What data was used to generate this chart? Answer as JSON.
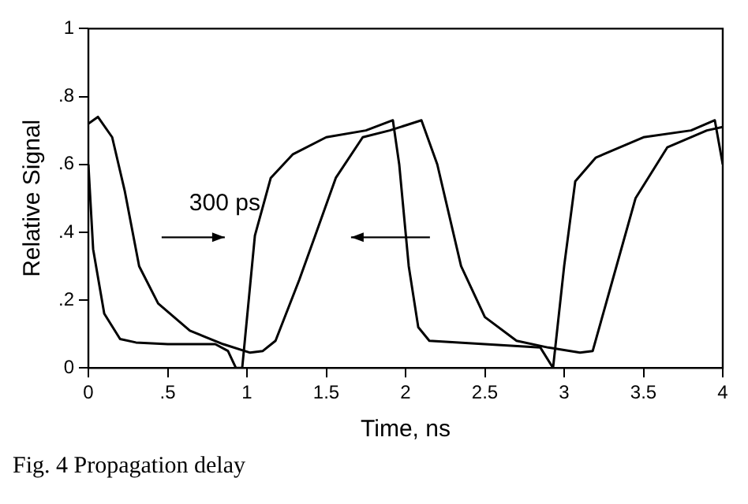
{
  "chart_data": {
    "type": "line",
    "xlabel": "Time, ns",
    "ylabel": "Relative Signal",
    "xlim": [
      0,
      4
    ],
    "ylim": [
      0,
      1
    ],
    "xticks": [
      {
        "value": 0,
        "label": "0"
      },
      {
        "value": 0.5,
        "label": ".5"
      },
      1,
      1.5,
      2,
      2.5,
      3,
      3.5,
      4
    ],
    "yticks": [
      {
        "value": 0,
        "label": "0"
      },
      {
        "value": 0.2,
        "label": ".2"
      },
      {
        "value": 0.4,
        "label": ".4"
      },
      {
        "value": 0.6,
        "label": ".6"
      },
      {
        "value": 0.8,
        "label": ".8"
      },
      1
    ],
    "grid": false,
    "legend": false,
    "marker": "none",
    "line_style": "solid",
    "annotations": [
      "300 ps",
      "Fig. 4 Propagation delay"
    ],
    "series": [
      {
        "color": "#000000",
        "x": [
          0,
          0.03,
          0.1,
          0.2,
          0.3,
          0.5,
          0.8,
          0.88,
          0.93,
          0.97,
          1.05,
          1.15,
          1.29,
          1.5,
          1.75,
          1.92,
          1.96,
          2.02,
          2.08,
          2.15,
          2.5,
          2.85,
          2.93,
          3.0,
          3.07,
          3.2,
          3.5,
          3.8,
          3.95,
          4
        ],
        "values": [
          0.6,
          0.35,
          0.16,
          0.085,
          0.075,
          0.07,
          0.07,
          0.05,
          0,
          0,
          0.39,
          0.56,
          0.63,
          0.68,
          0.7,
          0.73,
          0.6,
          0.3,
          0.12,
          0.08,
          0.07,
          0.06,
          0,
          0.3,
          0.55,
          0.62,
          0.68,
          0.7,
          0.73,
          0.6
        ]
      },
      {
        "color": "#000000",
        "x": [
          0,
          0.06,
          0.15,
          0.23,
          0.32,
          0.44,
          0.64,
          0.85,
          1.02,
          1.1,
          1.18,
          1.33,
          1.43,
          1.56,
          1.73,
          1.9,
          2.1,
          2.2,
          2.35,
          2.5,
          2.7,
          2.9,
          3.1,
          3.18,
          3.3,
          3.45,
          3.65,
          3.9,
          4
        ],
        "values": [
          0.72,
          0.74,
          0.68,
          0.52,
          0.3,
          0.19,
          0.11,
          0.07,
          0.045,
          0.05,
          0.08,
          0.26,
          0.39,
          0.56,
          0.68,
          0.7,
          0.73,
          0.6,
          0.3,
          0.15,
          0.08,
          0.06,
          0.045,
          0.05,
          0.25,
          0.5,
          0.65,
          0.7,
          0.71
        ]
      }
    ]
  }
}
